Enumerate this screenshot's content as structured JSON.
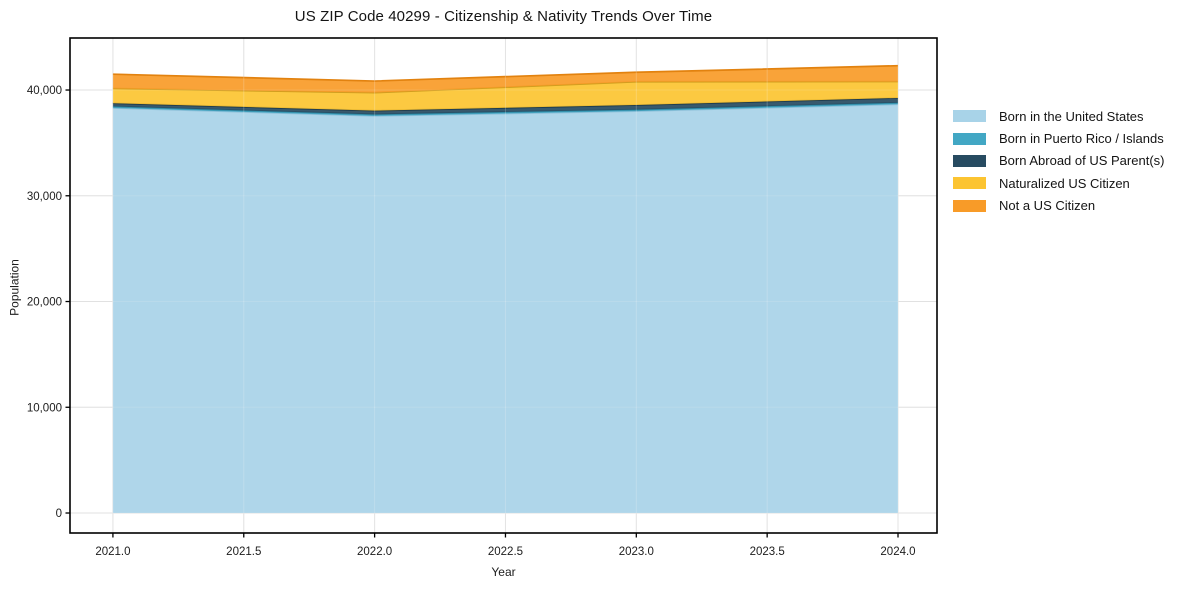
{
  "title": "US ZIP Code 40299 - Citizenship & Nativity Trends Over Time",
  "axes": {
    "xlabel": "Year",
    "ylabel": "Population"
  },
  "chart_data": {
    "type": "area",
    "stacked": true,
    "title": "US ZIP Code 40299 - Citizenship & Nativity Trends Over Time",
    "xlabel": "Year",
    "ylabel": "Population",
    "x": [
      2021,
      2022,
      2023,
      2024
    ],
    "series": [
      {
        "name": "Born in the United States",
        "color": "#a8d3e8",
        "edge_color": "#8fc1da",
        "values": [
          38300,
          37550,
          38000,
          38650
        ]
      },
      {
        "name": "Born in Puerto Rico / Islands",
        "color": "#42a7c4",
        "edge_color": "#2f8aa5",
        "values": [
          150,
          150,
          150,
          150
        ]
      },
      {
        "name": "Born Abroad of US Parent(s)",
        "color": "#274b61",
        "edge_color": "#1d3a4c",
        "values": [
          300,
          350,
          430,
          450
        ]
      },
      {
        "name": "Naturalized US Citizen",
        "color": "#fcc431",
        "edge_color": "#cf9e1f",
        "values": [
          1400,
          1700,
          2200,
          1550
        ]
      },
      {
        "name": "Not a US Citizen",
        "color": "#f89b28",
        "edge_color": "#e2820f",
        "values": [
          1350,
          1100,
          900,
          1500
        ]
      }
    ],
    "xticks": [
      2021.0,
      2021.5,
      2022.0,
      2022.5,
      2023.0,
      2023.5,
      2024.0
    ],
    "yticks": [
      0,
      10000,
      20000,
      30000,
      40000
    ],
    "xlim": [
      2020.836,
      2024.149
    ],
    "ylim": [
      -1890,
      44920
    ],
    "grid": true,
    "grid_color": "#dcdcdc",
    "frame_color": "#000000",
    "fill_opacity": 0.92,
    "legend_position": "right-outside"
  }
}
